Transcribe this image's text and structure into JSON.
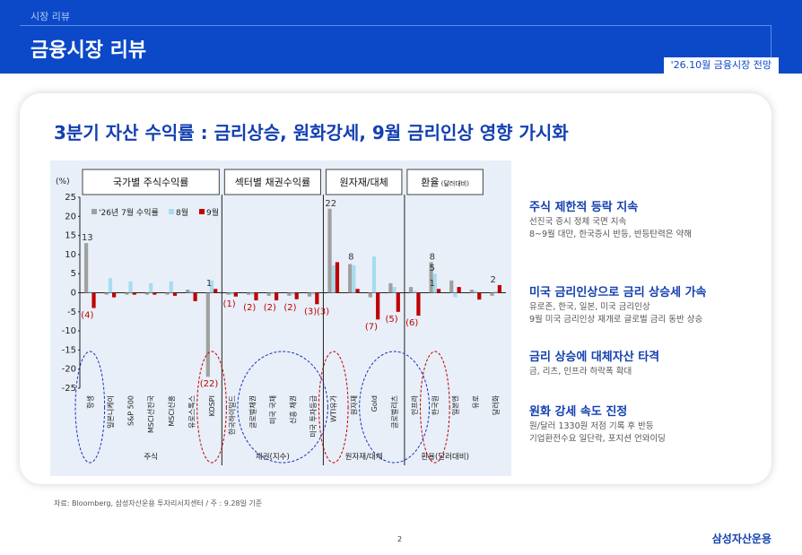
{
  "header": {
    "section": "시장 리뷰",
    "title": "금융시장 리뷰",
    "tag": "'26.10월 금융시장 전망"
  },
  "heading": "3분기 자산 수익률 : 금리상승, 원화강세, 9월 금리인상 영향 가시화",
  "chart_data": {
    "type": "bar",
    "title": "",
    "ylabel": "(%)",
    "ylim": [
      -25,
      25
    ],
    "yticks": [
      25,
      20,
      15,
      10,
      5,
      0,
      -5,
      -10,
      -15,
      -20,
      -25
    ],
    "groups": [
      {
        "label": "국가별 주식수익률",
        "axis_label": "주식",
        "count": 7
      },
      {
        "label": "섹터별 채권수익률",
        "axis_label": "채권(지수)",
        "count": 5
      },
      {
        "label": "원자재/대체",
        "axis_label": "원자재/대체",
        "count": 4
      },
      {
        "label": "환율",
        "label_note": "(달러대비)",
        "axis_label": "환율(달러대비)",
        "count": 4
      }
    ],
    "categories": [
      "항셍",
      "일본니케이",
      "S&P 500",
      "MSCI선진국",
      "MSCI신흥",
      "유로스톡스",
      "KOSPI",
      "한국하이일드",
      "글로벌채권",
      "미국 국채",
      "신흥 채권",
      "미국 투자등급",
      "WTI유가",
      "원자재",
      "Gold",
      "글로벌리츠",
      "인프라",
      "한국원",
      "일본엔",
      "유로",
      "달러화"
    ],
    "series": [
      {
        "name": "'26년 7월 수익률",
        "color": "#a0a0a0",
        "values": [
          13,
          -0.5,
          -0.5,
          -0.5,
          -0.5,
          0.8,
          -22,
          -0.5,
          -0.5,
          -0.8,
          -0.8,
          -1,
          22,
          7.5,
          -1.2,
          2.5,
          1.5,
          8,
          3.2,
          0.8,
          -0.8
        ]
      },
      {
        "name": "8월",
        "color": "#a8dced",
        "values": [
          0.3,
          3.8,
          3,
          2.5,
          3,
          0.5,
          3.2,
          -0.5,
          -0.5,
          -0.3,
          -0.5,
          -0.5,
          7.2,
          7.2,
          9.5,
          1.5,
          0.5,
          5,
          -1.2,
          0.5,
          0.4
        ]
      },
      {
        "name": "9월",
        "color": "#c00000",
        "values": [
          -4,
          -1.2,
          -0.5,
          -0.5,
          -0.8,
          -2.2,
          1,
          -1,
          -2,
          -2,
          -1.7,
          -3,
          8,
          1,
          -7,
          -5,
          -6,
          1,
          1.5,
          -1.8,
          2
        ]
      }
    ],
    "data_labels": [
      {
        "cat": 0,
        "text": "13",
        "value": 13,
        "color": "#333"
      },
      {
        "cat": 0,
        "text": "(4)",
        "value": -4,
        "color": "#c00000"
      },
      {
        "cat": 6,
        "text": "1",
        "value": 1,
        "color": "#333"
      },
      {
        "cat": 6,
        "text": "(22)",
        "value": -22,
        "color": "#c00000"
      },
      {
        "cat": 7,
        "text": "(1)",
        "value": -1,
        "color": "#c00000"
      },
      {
        "cat": 8,
        "text": "(2)",
        "value": -2,
        "color": "#c00000"
      },
      {
        "cat": 9,
        "text": "(2)",
        "value": -2,
        "color": "#c00000"
      },
      {
        "cat": 10,
        "text": "(2)",
        "value": -2,
        "color": "#c00000"
      },
      {
        "cat": 11,
        "text": "(3)",
        "value": -3,
        "color": "#c00000"
      },
      {
        "cat": 11,
        "text": "(3)",
        "value": -3,
        "color": "#c00000"
      },
      {
        "cat": 12,
        "text": "22",
        "value": 22,
        "color": "#333"
      },
      {
        "cat": 13,
        "text": "8",
        "value": 8,
        "color": "#333"
      },
      {
        "cat": 14,
        "text": "(7)",
        "value": -7,
        "color": "#c00000"
      },
      {
        "cat": 15,
        "text": "(5)",
        "value": -5,
        "color": "#c00000"
      },
      {
        "cat": 16,
        "text": "(6)",
        "value": -6,
        "color": "#c00000"
      },
      {
        "cat": 17,
        "text": "8",
        "value": 8,
        "color": "#333"
      },
      {
        "cat": 17,
        "text": "5",
        "value": 5,
        "color": "#333"
      },
      {
        "cat": 17,
        "text": "1",
        "value": 1,
        "color": "#333"
      },
      {
        "cat": 20,
        "text": "2",
        "value": 2,
        "color": "#333"
      }
    ],
    "legend": "top-left",
    "grid": false,
    "highlights": [
      {
        "cats": [
          0
        ],
        "color": "#1a2fc0"
      },
      {
        "cats": [
          6
        ],
        "color": "#c00000"
      },
      {
        "cats": [
          8,
          9,
          10,
          11
        ],
        "color": "#1a2fc0"
      },
      {
        "cats": [
          12
        ],
        "color": "#c00000"
      },
      {
        "cats": [
          14,
          15,
          16
        ],
        "color": "#1a2fc0"
      },
      {
        "cats": [
          17
        ],
        "color": "#c00000"
      }
    ]
  },
  "right_panel": [
    {
      "title": "주식 제한적 등락 지속",
      "desc": [
        "선진국 증시 정체 국면 지속",
        "8~9월 대만, 한국증시 반등, 반등탄력은 약해"
      ]
    },
    {
      "title": "미국 금리인상으로 금리 상승세 가속",
      "desc": [
        "유로존, 한국, 일본, 미국 금리인상",
        "9월 미국 금리인상 재개로 글로벌 금리 동반 상승"
      ]
    },
    {
      "title": "금리 상승에 대체자산 타격",
      "desc": [
        "금, 리츠, 인프라 하락폭 확대"
      ]
    },
    {
      "title": "원화 강세 속도 진정",
      "desc": [
        "원/달러 1330원 저점 기록 후 반등",
        "기업환전수요 일단락, 포지션 언와이딩"
      ]
    }
  ],
  "footer": {
    "source": "자료: Bloomberg, 삼성자산운용 투자리서치센터 / 주 : 9.28일 기준",
    "page": "2",
    "brand": "삼성자산운용"
  }
}
